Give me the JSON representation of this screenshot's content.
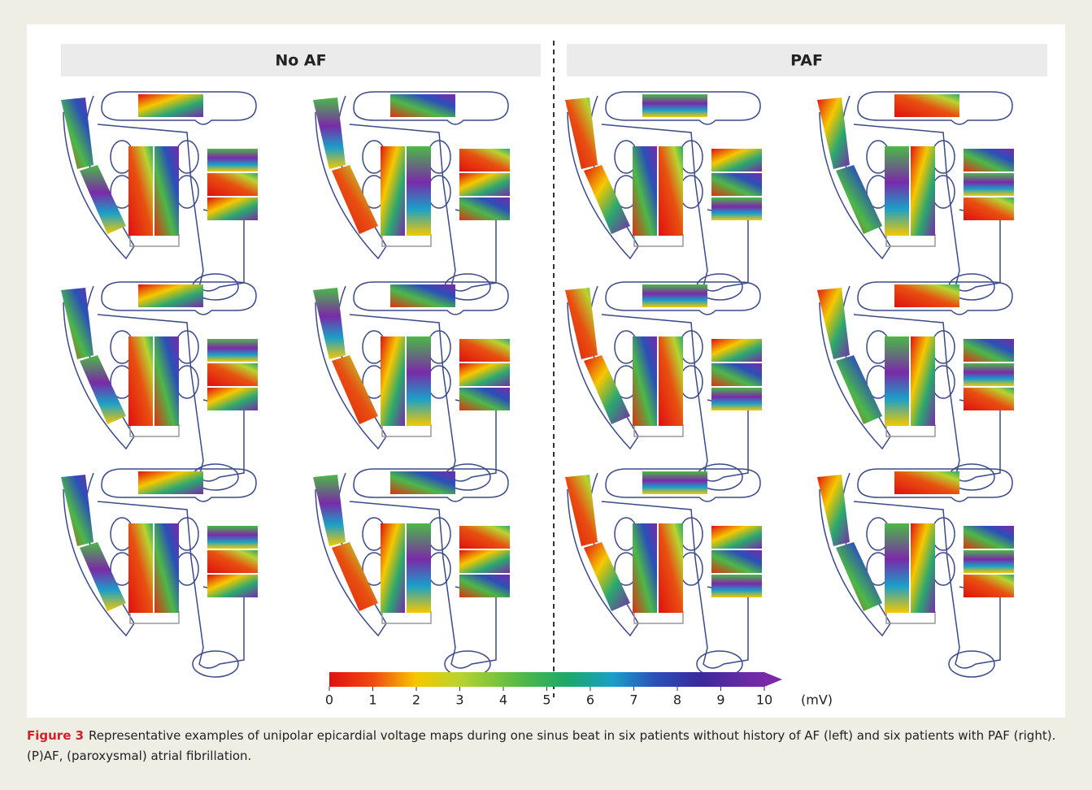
{
  "panels": [
    {
      "header": "No AF"
    },
    {
      "header": "PAF"
    }
  ],
  "colorbar": {
    "ticks": [
      0,
      1,
      2,
      3,
      4,
      5,
      6,
      7,
      8,
      9,
      10
    ],
    "unit": "(mV)"
  },
  "caption": {
    "label": "Figure 3",
    "text": "Representative examples of unipolar epicardial voltage maps during one sinus beat in six patients without history of AF (left) and six patients with PAF (right). (P)AF, (paroxysmal) atrial fibrillation."
  }
}
